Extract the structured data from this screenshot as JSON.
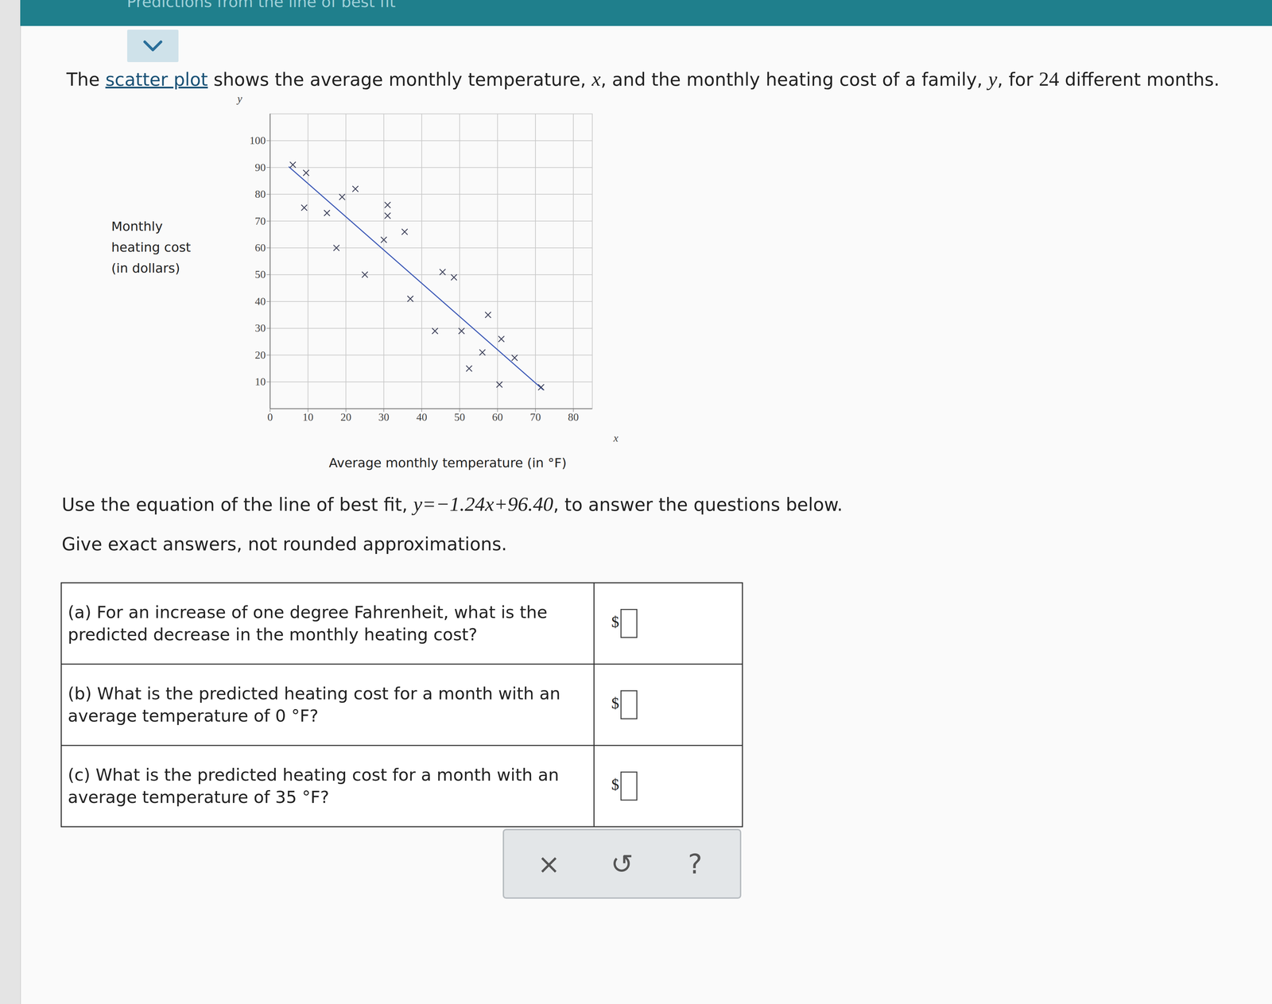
{
  "page": {
    "header_title": "Predictions from the line of best fit",
    "intro": [
      {
        "text": "The "
      },
      {
        "text": "scatter plot",
        "link": true
      },
      {
        "text": " shows the average monthly temperature, "
      },
      {
        "text": "x",
        "math": true
      },
      {
        "text": ", and the monthly heating cost of a family, "
      },
      {
        "text": "y",
        "math": true
      },
      {
        "text": ", for "
      },
      {
        "text": "24",
        "num": true
      },
      {
        "text": " different months."
      }
    ],
    "instruction": [
      {
        "text": "Use the equation of the line of best fit, "
      },
      {
        "text": "y=−1.24x+96.40",
        "math": true
      },
      {
        "text": ", to answer the questions below."
      }
    ],
    "note": "Give exact answers, not rounded approximations.",
    "questions": [
      {
        "text": "(a) For an increase of one degree Fahrenheit, what is the predicted decrease in the monthly heating cost?",
        "currency": "$"
      },
      {
        "text": "(b) What is the predicted heating cost for a month with an average temperature of 0 °F?",
        "currency": "$"
      },
      {
        "text": "(c) What is the predicted heating cost for a month with an average temperature of 35 °F?",
        "currency": "$"
      }
    ],
    "toolbar": [
      "×",
      "↺",
      "?"
    ]
  },
  "chart_data": {
    "type": "scatter",
    "x_label": "x",
    "y_label": "y",
    "x_title": "Average monthly temperature (in °F)",
    "y_title": [
      "Monthly",
      "heating cost",
      "(in dollars)"
    ],
    "x": [
      6,
      9.5,
      9,
      15,
      19,
      22.5,
      17.5,
      25,
      31,
      31,
      30,
      35.5,
      37,
      45.5,
      48.5,
      43.5,
      50.5,
      57.5,
      52.5,
      56,
      61,
      64.5,
      60.5,
      71.5
    ],
    "values": [
      91,
      88,
      75,
      73,
      79,
      82,
      60,
      50,
      76,
      72,
      63,
      66,
      41,
      51,
      49,
      29,
      29,
      35,
      15,
      21,
      26,
      19,
      9,
      8
    ],
    "color": "#3b3f58",
    "marker": "x",
    "fit_line": {
      "slope": -1.24,
      "intercept": 96.4,
      "x_range": [
        5,
        72
      ],
      "color": "#3a57b5"
    },
    "xlim": [
      0,
      85
    ],
    "ylim": [
      0,
      110
    ],
    "xticks": [
      0,
      10,
      20,
      30,
      40,
      50,
      60,
      70,
      80
    ],
    "yticks": [
      10,
      20,
      30,
      40,
      50,
      60,
      70,
      80,
      90,
      100
    ],
    "grid": true
  }
}
